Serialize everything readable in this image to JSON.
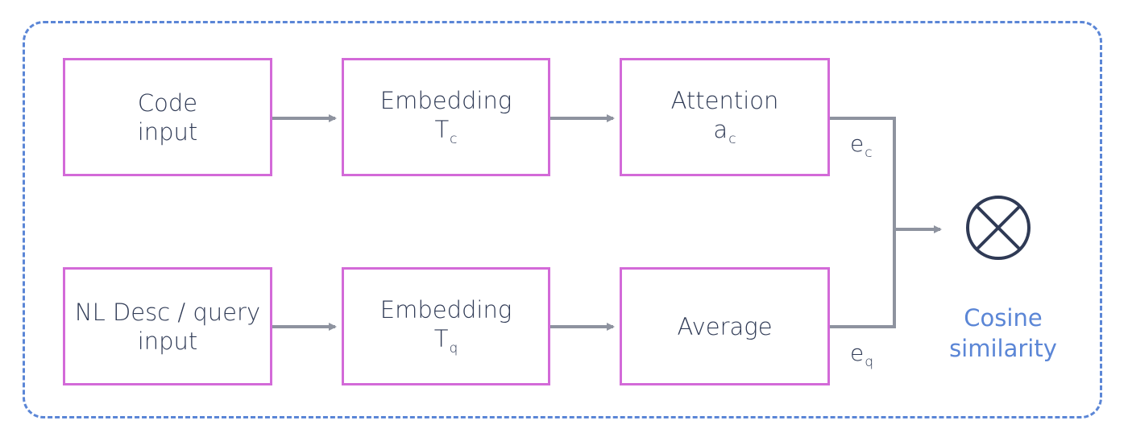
{
  "nodes": {
    "code_input": {
      "lines": [
        "Code",
        "input"
      ]
    },
    "embedding_c": {
      "title": "Embedding",
      "symbol": "T",
      "sub": "c"
    },
    "attention": {
      "title": "Attention",
      "symbol": "a",
      "sub": "c"
    },
    "nl_input": {
      "lines": [
        "NL Desc / query",
        "input"
      ]
    },
    "embedding_q": {
      "title": "Embedding",
      "symbol": "T",
      "sub": "q"
    },
    "average": {
      "title": "Average"
    }
  },
  "labels": {
    "ec": {
      "symbol": "e",
      "sub": "c"
    },
    "eq": {
      "symbol": "e",
      "sub": "q"
    }
  },
  "output": {
    "lines": [
      "Cosine",
      "similarity"
    ]
  },
  "colors": {
    "box_border": "#d36ad8",
    "frame": "#5b86d6",
    "arrow": "#8e939f",
    "text": "#2f3a55",
    "accent": "#5b86d6"
  },
  "icons": {
    "combine": "circle-times-icon"
  }
}
